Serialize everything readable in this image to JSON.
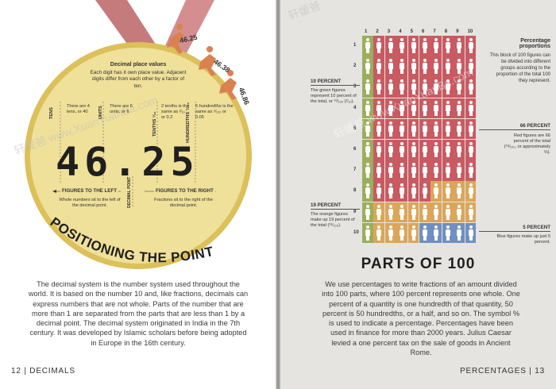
{
  "left_page": {
    "title": "POSITIONING THE POINT",
    "medal_heading": "Decimal place values",
    "medal_intro": "Each digit has it own place value. Adjacent digits differ from each other by a factor of ten.",
    "number_digits": [
      "4",
      "6",
      ".",
      "2",
      "5"
    ],
    "place_labels": [
      {
        "name": "TENS",
        "note": "There are 4 tens, or 40"
      },
      {
        "name": "UNITS",
        "note": "There are 6 units, or 6"
      },
      {
        "name": "TENTHS ¹⁄₁₀",
        "note": "2 tenths is the same as ²⁄₁₀ or 0.2"
      },
      {
        "name": "HUNDREDTHS ¹⁄₁₀₀",
        "note": "5 hundredths is the same as ⁵⁄₁₀₀ or 0.05"
      }
    ],
    "figures_left_heading": "FIGURES TO THE LEFT",
    "figures_left_note": "Whole numbers sit to the left of the decimal point.",
    "decimal_point_label": "DECIMAL POINT",
    "figures_right_heading": "FIGURES TO THE RIGHT",
    "figures_right_note": "Fractions sit to the right of the decimal point.",
    "athlete_scores": [
      "46.25",
      "46.38",
      "46.86"
    ],
    "body": "The decimal system is the number system used throughout the world. It is based on the number 10 and, like fractions, decimals can express numbers that are not whole. Parts of the number that are more than 1 are separated from the parts that are less than 1 by a decimal point. The decimal system originated in India in the 7th century. It was developed by Islamic scholars before being adopted in Europe in the 16th century.",
    "footer_page": "12",
    "footer_section": "DECIMALS"
  },
  "right_page": {
    "title": "PARTS OF 100",
    "grid_column_numbers": [
      "1",
      "2",
      "3",
      "4",
      "5",
      "6",
      "7",
      "8",
      "9",
      "10"
    ],
    "grid_row_numbers": [
      "1",
      "2",
      "3",
      "4",
      "5",
      "6",
      "7",
      "8",
      "9",
      "10"
    ],
    "grid_counts": {
      "green": 10,
      "red": 66,
      "orange": 19,
      "blue": 5
    },
    "colors": {
      "green": "#9aae5c",
      "red": "#c95a62",
      "orange": "#dba65a",
      "blue": "#6f8fc0"
    },
    "proportions_heading": "Percentage proportions",
    "proportions_note": "This block of 100 figures can be divided into different groups according to the proportion of the total 100 they represent.",
    "ten_percent_heading": "10 PERCENT",
    "ten_percent_note": "The green figures represent 10 percent of the total, or ¹⁰⁄₁₀₀ (¹⁄₁₀).",
    "sixty_six_heading": "66 PERCENT",
    "sixty_six_note": "Red figures are 66 percent of the total (⁶⁶⁄₁₀₀, or approximately ⅔).",
    "nineteen_heading": "19 PERCENT",
    "nineteen_note": "The orange figures make up 19 percent of the total (¹⁹⁄₁₀₀).",
    "five_heading": "5 PERCENT",
    "five_note": "Blue figures make up just 5 percent.",
    "body": "We use percentages to write fractions of an amount divided into 100 parts, where 100 percent represents one whole. One percent of a quantity is one hundredth of that quantity, 50 percent is 50 hundredths, or a half, and so on. The symbol % is used to indicate a percentage. Percentages have been used in finance for more than 2000 years. Julius Caesar levied a one percent tax on the sale of goods in Ancient Rome.",
    "footer_section": "PERCENTAGES",
    "footer_page": "13"
  },
  "watermark": "轩媛爸"
}
